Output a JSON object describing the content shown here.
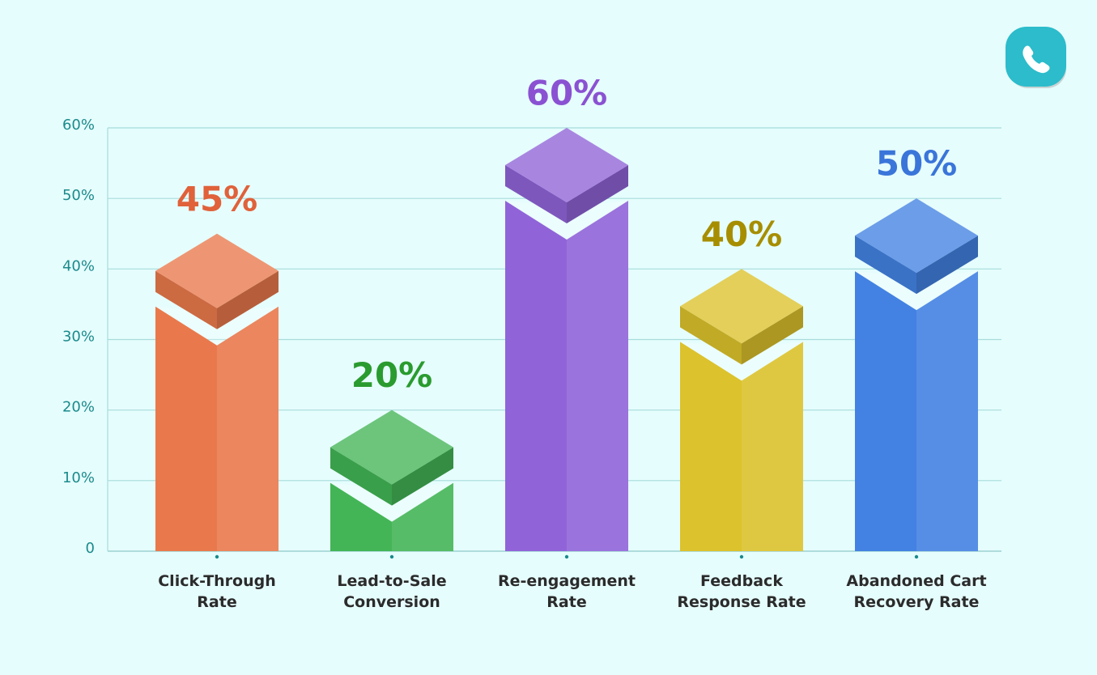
{
  "chart_data": {
    "type": "bar",
    "categories": [
      "Click-Through\nRate",
      "Lead-to-Sale\nConversion",
      "Re-engagement\nRate",
      "Feedback\nResponse Rate",
      "Abandoned Cart\nRecovery Rate"
    ],
    "values": [
      45,
      20,
      60,
      40,
      50
    ],
    "value_labels": [
      "45%",
      "20%",
      "60%",
      "40%",
      "50%"
    ],
    "colors": [
      "#e9794c",
      "#43b556",
      "#9064d8",
      "#dcc22c",
      "#4382e2"
    ],
    "label_colors": [
      "#e0613a",
      "#2a9b2f",
      "#8a52d2",
      "#a68e00",
      "#3a75d9"
    ],
    "ylim": [
      0,
      60
    ],
    "yticks": [
      {
        "value": 0,
        "label": "0"
      },
      {
        "value": 10,
        "label": "10%"
      },
      {
        "value": 20,
        "label": "20%"
      },
      {
        "value": 30,
        "label": "30%"
      },
      {
        "value": 40,
        "label": "40%"
      },
      {
        "value": 50,
        "label": "50%"
      },
      {
        "value": 60,
        "label": "60%"
      }
    ],
    "grid": true
  }
}
